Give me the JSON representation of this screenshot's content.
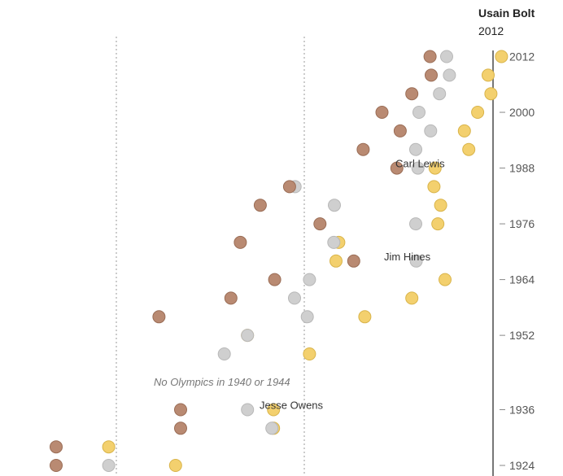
{
  "chart_data": {
    "type": "scatter",
    "y_ticks": [
      "1924",
      "1936",
      "1952",
      "1964",
      "1976",
      "1988",
      "2000",
      "2012"
    ],
    "highlight": {
      "name": "Usain Bolt",
      "year": "2012"
    },
    "annotations": [
      {
        "text": "Carl Lewis",
        "year": 1988
      },
      {
        "text": "Jim Hines",
        "year": 1968
      },
      {
        "text": "Jesse Owens",
        "year": 1936
      }
    ],
    "gap_note": "No Olympics in 1940 or 1944",
    "colors": {
      "gold": "#f3d06e",
      "silver": "#cfcfcf",
      "bronze": "#b98a72",
      "axis": "#777777"
    },
    "series": [
      {
        "medal": "gold",
        "points": [
          {
            "year": 1924,
            "pos": 0.288
          },
          {
            "year": 1928,
            "pos": 0.167
          },
          {
            "year": 1932,
            "pos": 0.465
          },
          {
            "year": 1936,
            "pos": 0.465
          },
          {
            "year": 1948,
            "pos": 0.53
          },
          {
            "year": 1952,
            "pos": 0.418
          },
          {
            "year": 1956,
            "pos": 0.63
          },
          {
            "year": 1960,
            "pos": 0.715
          },
          {
            "year": 1964,
            "pos": 0.775
          },
          {
            "year": 1968,
            "pos": 0.578
          },
          {
            "year": 1972,
            "pos": 0.583
          },
          {
            "year": 1976,
            "pos": 0.762
          },
          {
            "year": 1980,
            "pos": 0.767
          },
          {
            "year": 1984,
            "pos": 0.755
          },
          {
            "year": 1988,
            "pos": 0.757
          },
          {
            "year": 1992,
            "pos": 0.818
          },
          {
            "year": 1996,
            "pos": 0.81
          },
          {
            "year": 2000,
            "pos": 0.834
          },
          {
            "year": 2004,
            "pos": 0.858
          },
          {
            "year": 2008,
            "pos": 0.853
          },
          {
            "year": 2012,
            "pos": 0.877
          }
        ]
      },
      {
        "medal": "silver",
        "points": [
          {
            "year": 1924,
            "pos": 0.167
          },
          {
            "year": 1932,
            "pos": 0.462
          },
          {
            "year": 1936,
            "pos": 0.418
          },
          {
            "year": 1948,
            "pos": 0.376
          },
          {
            "year": 1952,
            "pos": 0.418
          },
          {
            "year": 1956,
            "pos": 0.526
          },
          {
            "year": 1960,
            "pos": 0.503
          },
          {
            "year": 1964,
            "pos": 0.53
          },
          {
            "year": 1968,
            "pos": 0.723
          },
          {
            "year": 1972,
            "pos": 0.574
          },
          {
            "year": 1976,
            "pos": 0.722
          },
          {
            "year": 1980,
            "pos": 0.575
          },
          {
            "year": 1984,
            "pos": 0.504
          },
          {
            "year": 1988,
            "pos": 0.726
          },
          {
            "year": 1992,
            "pos": 0.722
          },
          {
            "year": 1996,
            "pos": 0.749
          },
          {
            "year": 2000,
            "pos": 0.728
          },
          {
            "year": 2004,
            "pos": 0.765
          },
          {
            "year": 2008,
            "pos": 0.783
          },
          {
            "year": 2012,
            "pos": 0.778
          }
        ]
      },
      {
        "medal": "bronze",
        "points": [
          {
            "year": 1924,
            "pos": 0.072
          },
          {
            "year": 1928,
            "pos": 0.072
          },
          {
            "year": 1932,
            "pos": 0.297
          },
          {
            "year": 1936,
            "pos": 0.297
          },
          {
            "year": 1956,
            "pos": 0.258
          },
          {
            "year": 1960,
            "pos": 0.388
          },
          {
            "year": 1964,
            "pos": 0.467
          },
          {
            "year": 1968,
            "pos": 0.61
          },
          {
            "year": 1972,
            "pos": 0.405
          },
          {
            "year": 1976,
            "pos": 0.549
          },
          {
            "year": 1980,
            "pos": 0.441
          },
          {
            "year": 1984,
            "pos": 0.494
          },
          {
            "year": 1988,
            "pos": 0.688
          },
          {
            "year": 1992,
            "pos": 0.627
          },
          {
            "year": 1996,
            "pos": 0.694
          },
          {
            "year": 2000,
            "pos": 0.661
          },
          {
            "year": 2004,
            "pos": 0.715
          },
          {
            "year": 2008,
            "pos": 0.75
          },
          {
            "year": 2012,
            "pos": 0.748
          }
        ]
      }
    ]
  }
}
